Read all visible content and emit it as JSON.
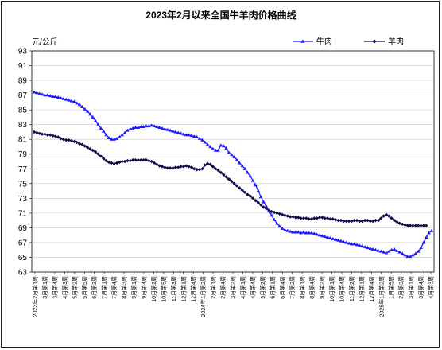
{
  "chart_data": {
    "type": "line",
    "title": "2023年2月以来全国牛羊肉价格曲线",
    "ylabel": "元/公斤",
    "xlabel": "",
    "ylim": [
      63,
      93
    ],
    "yticks": [
      63,
      65,
      67,
      69,
      71,
      73,
      75,
      77,
      79,
      81,
      83,
      85,
      87,
      89,
      91,
      93
    ],
    "grid": true,
    "legend_position": "top-right",
    "x_tick_labels": [
      "2023年2月第1周",
      "3月第1周",
      "3月第4周",
      "4月第3周",
      "5月第2周",
      "5月第5周",
      "6月第3周",
      "7月第1周",
      "7月第4周",
      "8月第3周",
      "9月第1周",
      "9月第4周",
      "10月第2周",
      "10月第5周",
      "11月第3周",
      "12月第1周",
      "12月第4周",
      "2024年1月第2周",
      "2月第1周",
      "2月第4周",
      "3月第2周",
      "4月第1周",
      "4月第4周",
      "5月第2周",
      "6月第1周",
      "6月第4周",
      "7月第2周",
      "8月第1周",
      "8月第4周",
      "9月第2周",
      "10月第1周",
      "10月第4周",
      "11月第2周",
      "12月第1周",
      "12月第4周",
      "2025年1月第2周",
      "1月第5周",
      "2月第3周",
      "3月第1周",
      "3月第4周",
      "4月第3周"
    ],
    "series": [
      {
        "name": "牛肉",
        "color": "#1a1aff",
        "marker": "triangle",
        "values": [
          87.4,
          87.3,
          87.2,
          87.1,
          87.0,
          87.0,
          86.9,
          86.8,
          86.8,
          86.7,
          86.6,
          86.5,
          86.4,
          86.3,
          86.2,
          86.1,
          85.9,
          85.7,
          85.4,
          85.1,
          84.8,
          84.4,
          84.0,
          83.5,
          83.0,
          82.5,
          82.1,
          81.6,
          81.2,
          81.0,
          81.0,
          81.1,
          81.3,
          81.6,
          81.9,
          82.2,
          82.4,
          82.5,
          82.6,
          82.6,
          82.7,
          82.7,
          82.8,
          82.8,
          82.9,
          82.8,
          82.7,
          82.6,
          82.5,
          82.4,
          82.3,
          82.2,
          82.1,
          82.0,
          81.9,
          81.8,
          81.7,
          81.6,
          81.6,
          81.5,
          81.4,
          81.3,
          81.1,
          80.9,
          80.6,
          80.3,
          80.0,
          79.7,
          79.5,
          79.5,
          80.2,
          80.1,
          79.8,
          79.2,
          78.9,
          78.6,
          78.2,
          77.8,
          77.4,
          77.0,
          76.5,
          76.0,
          75.4,
          74.8,
          74.0,
          73.2,
          72.5,
          71.9,
          71.3,
          70.7,
          70.1,
          69.6,
          69.2,
          68.9,
          68.7,
          68.6,
          68.5,
          68.4,
          68.4,
          68.4,
          68.3,
          68.4,
          68.3,
          68.3,
          68.3,
          68.2,
          68.1,
          68.0,
          67.9,
          67.8,
          67.7,
          67.6,
          67.5,
          67.4,
          67.3,
          67.2,
          67.1,
          67.0,
          66.9,
          66.8,
          66.8,
          66.7,
          66.6,
          66.5,
          66.4,
          66.3,
          66.2,
          66.1,
          66.0,
          65.9,
          65.8,
          65.7,
          65.6,
          65.8,
          66.0,
          66.1,
          65.9,
          65.7,
          65.5,
          65.3,
          65.1,
          65.1,
          65.3,
          65.5,
          65.8,
          66.3,
          67.0,
          67.7,
          68.3,
          68.6
        ]
      },
      {
        "name": "羊肉",
        "color": "#0a0a4a",
        "marker": "diamond",
        "values": [
          82.0,
          81.9,
          81.8,
          81.7,
          81.7,
          81.6,
          81.6,
          81.5,
          81.4,
          81.3,
          81.1,
          81.0,
          80.9,
          80.9,
          80.8,
          80.7,
          80.6,
          80.4,
          80.3,
          80.1,
          79.9,
          79.7,
          79.5,
          79.3,
          79.0,
          78.7,
          78.4,
          78.1,
          77.9,
          77.8,
          77.7,
          77.8,
          77.9,
          78.0,
          78.0,
          78.1,
          78.1,
          78.2,
          78.2,
          78.2,
          78.2,
          78.2,
          78.2,
          78.1,
          78.0,
          77.8,
          77.6,
          77.4,
          77.3,
          77.2,
          77.1,
          77.1,
          77.1,
          77.2,
          77.2,
          77.3,
          77.3,
          77.4,
          77.3,
          77.2,
          77.0,
          76.9,
          76.9,
          77.0,
          77.5,
          77.7,
          77.6,
          77.3,
          77.0,
          76.8,
          76.5,
          76.2,
          75.9,
          75.6,
          75.3,
          75.0,
          74.7,
          74.4,
          74.1,
          73.8,
          73.5,
          73.3,
          73.0,
          72.7,
          72.4,
          72.1,
          71.8,
          71.6,
          71.4,
          71.2,
          71.1,
          71.0,
          70.9,
          70.8,
          70.7,
          70.6,
          70.5,
          70.5,
          70.4,
          70.4,
          70.3,
          70.3,
          70.3,
          70.2,
          70.2,
          70.3,
          70.3,
          70.4,
          70.4,
          70.3,
          70.3,
          70.2,
          70.2,
          70.1,
          70.0,
          70.0,
          69.9,
          69.9,
          69.9,
          69.9,
          70.0,
          70.0,
          69.9,
          69.9,
          70.0,
          70.0,
          69.9,
          69.9,
          70.0,
          70.0,
          70.3,
          70.6,
          70.8,
          70.6,
          70.3,
          70.0,
          69.8,
          69.6,
          69.5,
          69.4,
          69.3,
          69.3,
          69.3,
          69.3,
          69.3,
          69.3,
          69.3,
          69.3
        ]
      }
    ]
  }
}
